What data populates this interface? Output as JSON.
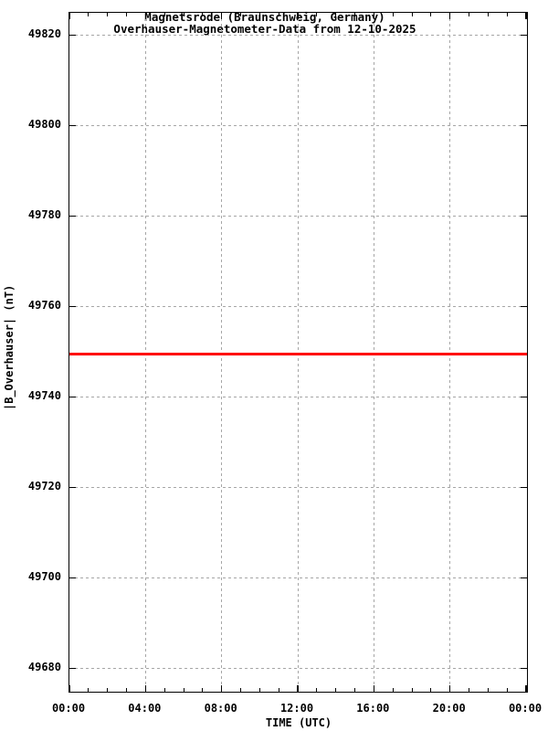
{
  "chart_data": {
    "type": "line",
    "title": "Magnetsrode (Braunschweig, Germany)",
    "subtitle": "Overhauser-Magnetometer-Data from 12-10-2025",
    "xlabel": "TIME (UTC)",
    "ylabel": "|B_Overhauser| (nT)",
    "x_axis": {
      "range_hours": [
        0,
        24
      ],
      "major_tick_hours": [
        0,
        4,
        8,
        12,
        16,
        20,
        24
      ],
      "major_tick_labels": [
        "00:00",
        "04:00",
        "08:00",
        "12:00",
        "16:00",
        "20:00",
        "00:00"
      ],
      "minor_tick_interval_hours": 1
    },
    "y_axis": {
      "range_nt": [
        49675,
        49825
      ],
      "major_tick_values": [
        49680,
        49700,
        49720,
        49740,
        49760,
        49780,
        49800,
        49820
      ],
      "major_tick_labels": [
        "49680",
        "49700",
        "49720",
        "49740",
        "49760",
        "49780",
        "49800",
        "49820"
      ]
    },
    "grid": {
      "show": true,
      "style": "dashed",
      "legend": "none"
    },
    "series": [
      {
        "name": "|B_Overhauser| (nT)",
        "shape": "constant-horizontal-line",
        "value_nt": 49749.5,
        "x_hours": [
          0,
          24
        ],
        "color": "#ff0000"
      }
    ]
  },
  "colors": {
    "background": "#ffffff",
    "frame": "#000000",
    "grid": "#a6a6a6",
    "text": "#000000",
    "series": "#ff0000"
  }
}
